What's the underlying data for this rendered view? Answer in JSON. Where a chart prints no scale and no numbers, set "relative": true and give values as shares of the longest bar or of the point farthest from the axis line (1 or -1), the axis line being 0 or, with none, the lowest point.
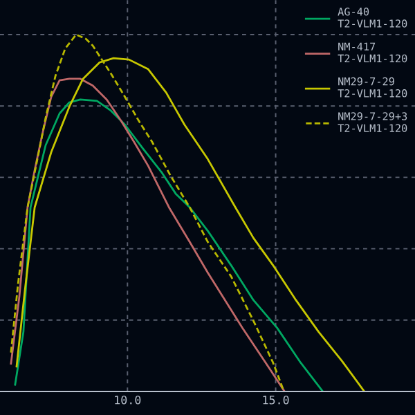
{
  "chart_data": {
    "type": "line",
    "relative": true,
    "xlim": [
      5.7,
      19.7
    ],
    "xticks": [
      {
        "value": 10,
        "label": "10.0"
      },
      {
        "value": 15,
        "label": "15.0"
      }
    ],
    "tick_labels": "x",
    "grid": true,
    "legend": "top right",
    "series": [
      {
        "name": "AG-40\nT2-VLM1-120",
        "color": "#00a862",
        "line_style": "solid",
        "x": [
          6.21,
          6.49,
          6.73,
          7.24,
          7.71,
          8.04,
          8.41,
          8.97,
          9.44,
          9.91,
          10.51,
          11.17,
          11.63,
          12.1,
          12.71,
          13.5,
          14.25,
          15.05,
          15.84,
          16.59
        ],
        "values": [
          0.019,
          0.167,
          0.516,
          0.69,
          0.779,
          0.81,
          0.818,
          0.814,
          0.787,
          0.748,
          0.682,
          0.612,
          0.554,
          0.516,
          0.45,
          0.353,
          0.256,
          0.178,
          0.081,
          0
        ]
      },
      {
        "name": "NM-417\nT2-VLM1-120",
        "color": "#c06868",
        "line_style": "solid",
        "x": [
          6.07,
          6.35,
          6.63,
          6.87,
          7.15,
          7.43,
          7.71,
          8.04,
          8.41,
          8.83,
          9.3,
          9.77,
          10.23,
          10.7,
          11.4,
          12.1,
          12.71,
          13.88,
          14.81,
          15.3
        ],
        "values": [
          0.078,
          0.264,
          0.516,
          0.62,
          0.729,
          0.826,
          0.872,
          0.876,
          0.876,
          0.857,
          0.818,
          0.76,
          0.698,
          0.632,
          0.516,
          0.419,
          0.333,
          0.178,
          0.062,
          0
        ]
      },
      {
        "name": "NM29-7-29\nT2-VLM1-120",
        "color": "#c8c800",
        "line_style": "solid",
        "x": [
          6.26,
          6.54,
          6.87,
          7.43,
          8.04,
          8.5,
          9.06,
          9.53,
          10.05,
          10.7,
          11.31,
          11.92,
          12.71,
          13.64,
          14.25,
          14.95,
          15.65,
          16.45,
          17.24,
          17.99
        ],
        "values": [
          0.07,
          0.283,
          0.516,
          0.671,
          0.798,
          0.876,
          0.922,
          0.934,
          0.93,
          0.903,
          0.837,
          0.748,
          0.651,
          0.516,
          0.43,
          0.349,
          0.26,
          0.167,
          0.085,
          0
        ]
      },
      {
        "name": "NM29-7-29+3\nT2-VLM1-120",
        "color": "#b8b800",
        "line_style": "dashed",
        "x": [
          6.07,
          6.31,
          6.63,
          7.01,
          7.24,
          7.57,
          7.9,
          8.27,
          8.6,
          8.83,
          9.44,
          9.91,
          10.37,
          10.84,
          11.45,
          12.1,
          12.71,
          13.5,
          14.25,
          14.91,
          15.28
        ],
        "values": [
          0.109,
          0.302,
          0.516,
          0.671,
          0.767,
          0.884,
          0.961,
          1.0,
          0.988,
          0.969,
          0.891,
          0.826,
          0.76,
          0.698,
          0.605,
          0.516,
          0.419,
          0.322,
          0.198,
          0.081,
          0
        ]
      }
    ]
  }
}
